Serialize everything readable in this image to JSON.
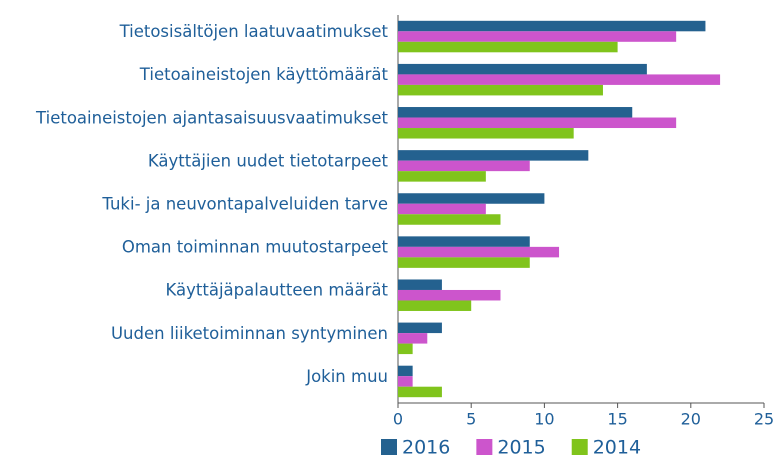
{
  "chart_data": {
    "type": "barh",
    "categories": [
      "Tietosisältöjen laatuvaatimukset",
      "Tietoaineistojen käyttömäärät",
      "Tietoaineistojen ajantasaisuusvaatimukset",
      "Käyttäjien uudet tietotarpeet",
      "Tuki- ja neuvontapalveluiden tarve",
      "Oman toiminnan muutostarpeet",
      "Käyttäjäpalautteen määrät",
      "Uuden liiketoiminnan syntyminen",
      "Jokin muu"
    ],
    "series": [
      {
        "name": "2016",
        "color": "#24618f",
        "values": [
          21,
          17,
          16,
          13,
          10,
          9,
          3,
          3,
          1
        ]
      },
      {
        "name": "2015",
        "color": "#cc55cc",
        "values": [
          19,
          22,
          19,
          9,
          6,
          11,
          7,
          2,
          1
        ]
      },
      {
        "name": "2014",
        "color": "#80c41c",
        "values": [
          15,
          14,
          12,
          6,
          7,
          9,
          5,
          1,
          3
        ]
      }
    ],
    "xlim": [
      0,
      25
    ],
    "xticks": [
      0,
      5,
      10,
      15,
      20,
      25
    ],
    "grid": false,
    "legend": "bottom"
  }
}
